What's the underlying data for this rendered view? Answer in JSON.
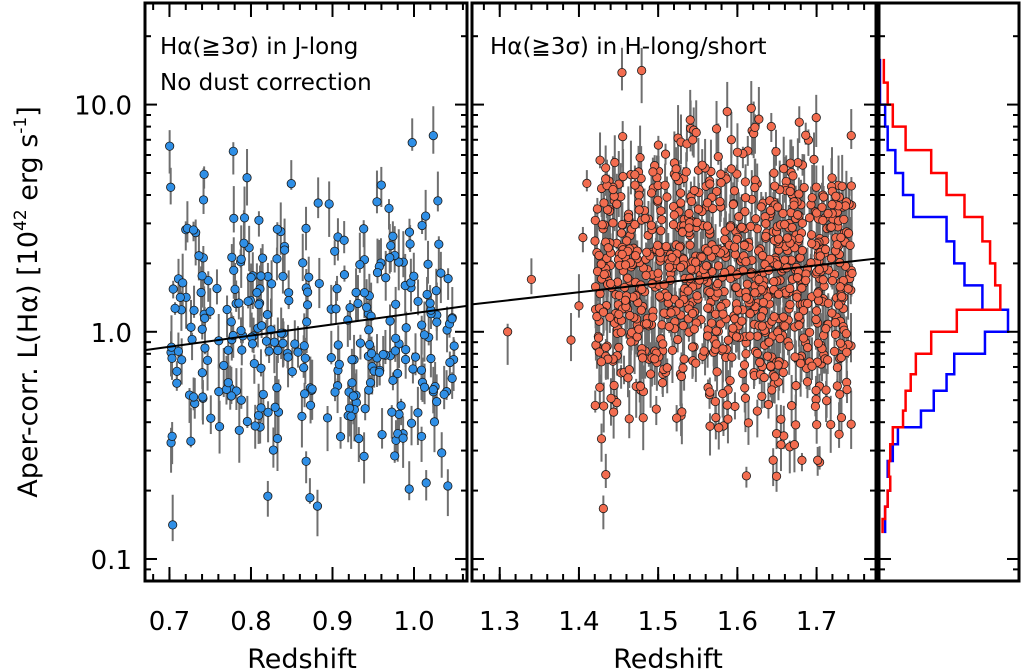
{
  "chart_data": {
    "type": "scatter",
    "ylabel_main": "Aper-corr. L(Hα)  [10",
    "ylabel_exp1": "42",
    "ylabel_unit": " erg s",
    "ylabel_exp2": "-1",
    "ylabel_close": "]",
    "yscale": "log",
    "ylim": [
      0.08,
      28
    ],
    "yticks": [
      {
        "value": 0.1,
        "label": "0.1"
      },
      {
        "value": 1.0,
        "label": "1.0"
      },
      {
        "value": 10.0,
        "label": "10.0"
      }
    ],
    "panels": [
      {
        "id": "j-long",
        "annotation_line1": "Hα(≧3σ) in J-long",
        "annotation_line2": "No dust correction",
        "xlabel": "Redshift",
        "xlim": [
          0.67,
          1.065
        ],
        "xticks": [
          {
            "value": 0.7,
            "label": "0.7"
          },
          {
            "value": 0.8,
            "label": "0.8"
          },
          {
            "value": 0.9,
            "label": "0.9"
          },
          {
            "value": 1.0,
            "label": "1.0"
          }
        ],
        "marker_color": "#2f8fe6",
        "fit_line": {
          "x": [
            0.67,
            1.065
          ],
          "y": [
            0.83,
            1.3
          ]
        },
        "n_points": 300,
        "x_range": [
          0.7,
          1.05
        ],
        "log_y_mean": 0.0,
        "log_y_sigma": 0.3
      },
      {
        "id": "h-long-short",
        "annotation_line1": "Hα(≧3σ) in H-long/short",
        "xlabel": "Redshift",
        "xlim": [
          1.265,
          1.775
        ],
        "xticks": [
          {
            "value": 1.3,
            "label": "1.3"
          },
          {
            "value": 1.4,
            "label": "1.4"
          },
          {
            "value": 1.5,
            "label": "1.5"
          },
          {
            "value": 1.6,
            "label": "1.6"
          },
          {
            "value": 1.7,
            "label": "1.7"
          }
        ],
        "marker_color": "#f26c4f",
        "fit_line": {
          "x": [
            1.265,
            1.775
          ],
          "y": [
            1.32,
            2.1
          ]
        },
        "n_points": 1000,
        "x_range": [
          1.42,
          1.745
        ],
        "log_y_mean": 0.22,
        "log_y_sigma": 0.3,
        "outliers": [
          {
            "x": 1.31,
            "y": 1.0
          },
          {
            "x": 1.34,
            "y": 1.7
          },
          {
            "x": 1.39,
            "y": 0.92
          },
          {
            "x": 1.4,
            "y": 1.3
          },
          {
            "x": 1.405,
            "y": 2.6
          },
          {
            "x": 1.41,
            "y": 4.5
          }
        ]
      }
    ],
    "histogram": {
      "y_edges": [
        0.13,
        0.15,
        0.17,
        0.2,
        0.23,
        0.27,
        0.32,
        0.38,
        0.45,
        0.55,
        0.65,
        0.8,
        1.0,
        1.25,
        1.6,
        2.0,
        2.5,
        3.2,
        4.0,
        5.0,
        6.3,
        8.0,
        10,
        12.5,
        15.9
      ],
      "series": [
        {
          "name": "J-long",
          "color": "#0000ff",
          "counts": [
            0.04,
            0.04,
            0.06,
            0.08,
            0.06,
            0.1,
            0.14,
            0.32,
            0.42,
            0.52,
            0.58,
            0.82,
            1.0,
            0.8,
            0.66,
            0.58,
            0.52,
            0.26,
            0.18,
            0.12,
            0.06,
            0.04,
            0,
            0
          ]
        },
        {
          "name": "H-long/short",
          "color": "#ff0000",
          "counts": [
            0.02,
            0.04,
            0.06,
            0.08,
            0.07,
            0.08,
            0.1,
            0.18,
            0.2,
            0.24,
            0.28,
            0.4,
            0.6,
            0.94,
            0.9,
            0.86,
            0.8,
            0.66,
            0.52,
            0.4,
            0.2,
            0.1,
            0.06,
            0.03
          ]
        }
      ]
    }
  }
}
